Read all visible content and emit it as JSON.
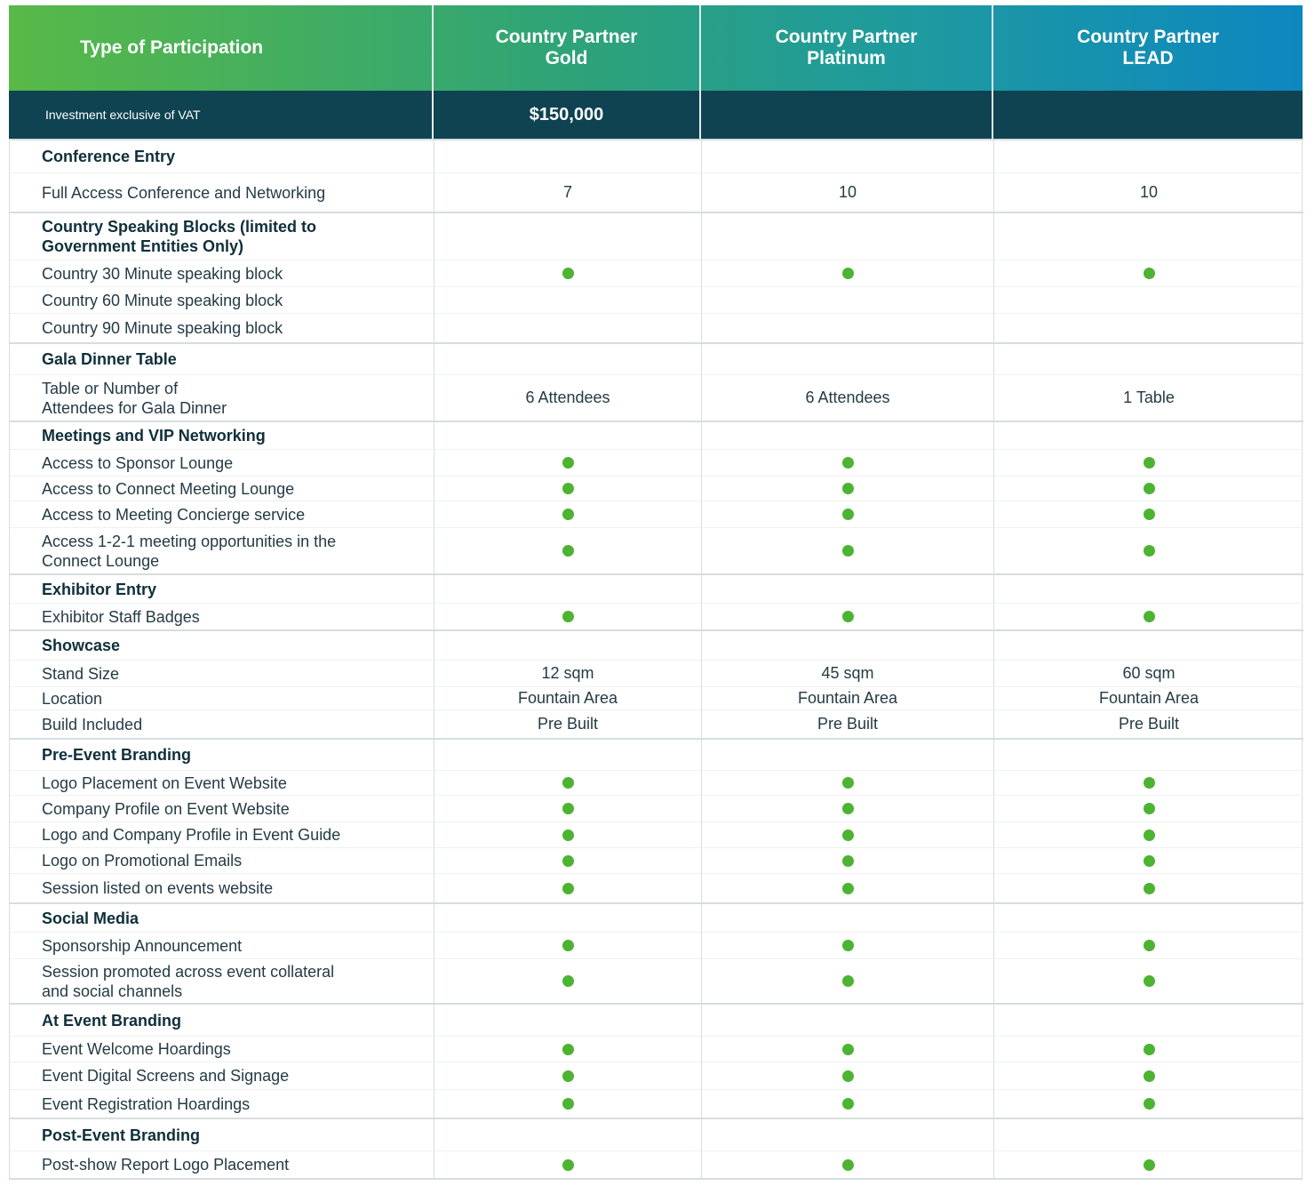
{
  "header": {
    "type_label": "Type of Participation",
    "columns": [
      "Country Partner\nGold",
      "Country Partner\nPlatinum",
      "Country Partner\nLEAD"
    ]
  },
  "investment": {
    "label": "Investment exclusive of VAT",
    "values": [
      "$150,000",
      "",
      ""
    ]
  },
  "colors": {
    "green_dot": "#4db332",
    "dark_band": "#0f4351",
    "header_gradient": [
      "#58b947",
      "#0d87c0"
    ]
  },
  "icon": "green-check-dot",
  "rows": [
    {
      "kind": "section",
      "label": "Conference Entry",
      "values": [
        "",
        "",
        ""
      ],
      "h": 38,
      "top": "thick"
    },
    {
      "kind": "item",
      "label": "Full Access Conference and Networking",
      "values": [
        "7",
        "10",
        "10"
      ],
      "h": 44,
      "top": "thin"
    },
    {
      "kind": "section",
      "label": "Country Speaking Blocks (limited to\nGovernment Entities Only)",
      "values": [
        "",
        "",
        ""
      ],
      "h": 54,
      "top": "thick"
    },
    {
      "kind": "item",
      "label": "Country 30 Minute speaking block",
      "values": [
        "dot",
        "dot",
        "dot"
      ],
      "h": 30,
      "top": "thin"
    },
    {
      "kind": "item",
      "label": "Country 60 Minute speaking block",
      "values": [
        "",
        "",
        ""
      ],
      "h": 30,
      "top": "thin"
    },
    {
      "kind": "item",
      "label": "Country 90 Minute speaking block",
      "values": [
        "",
        "",
        ""
      ],
      "h": 33,
      "top": "thin"
    },
    {
      "kind": "section",
      "label": "Gala Dinner Table",
      "values": [
        "",
        "",
        ""
      ],
      "h": 36,
      "top": "thick"
    },
    {
      "kind": "item",
      "label": "Table or Number of\nAttendees for Gala Dinner",
      "values": [
        "6 Attendees",
        "6 Attendees",
        "1 Table"
      ],
      "h": 52,
      "top": "thin"
    },
    {
      "kind": "section",
      "label": "Meetings and VIP Networking",
      "values": [
        "",
        "",
        ""
      ],
      "h": 32,
      "top": "thick"
    },
    {
      "kind": "item",
      "label": "Access to Sponsor Lounge",
      "values": [
        "dot",
        "dot",
        "dot"
      ],
      "h": 30,
      "top": "thin"
    },
    {
      "kind": "item",
      "label": "Access to Connect Meeting Lounge",
      "values": [
        "dot",
        "dot",
        "dot"
      ],
      "h": 28,
      "top": "thin"
    },
    {
      "kind": "item",
      "label": "Access to Meeting Concierge service",
      "values": [
        "dot",
        "dot",
        "dot"
      ],
      "h": 30,
      "top": "thin"
    },
    {
      "kind": "item",
      "label": "Access 1-2-1 meeting opportunities in the\nConnect Lounge",
      "values": [
        "dot",
        "dot",
        "dot"
      ],
      "h": 52,
      "top": "thin"
    },
    {
      "kind": "section",
      "label": "Exhibitor Entry",
      "values": [
        "",
        "",
        ""
      ],
      "h": 33,
      "top": "thick"
    },
    {
      "kind": "item",
      "label": "Exhibitor Staff Badges",
      "values": [
        "dot",
        "dot",
        "dot"
      ],
      "h": 30,
      "top": "thin"
    },
    {
      "kind": "section",
      "label": "Showcase",
      "values": [
        "",
        "",
        ""
      ],
      "h": 34,
      "top": "thick"
    },
    {
      "kind": "item",
      "label": "Stand Size",
      "values": [
        "12 sqm",
        "45 sqm",
        "60 sqm"
      ],
      "h": 30,
      "top": "thin"
    },
    {
      "kind": "item",
      "label": "Location",
      "values": [
        "Fountain Area",
        "Fountain Area",
        "Fountain Area"
      ],
      "h": 26,
      "top": "thin"
    },
    {
      "kind": "item",
      "label": "Build Included",
      "values": [
        "Pre Built",
        "Pre Built",
        "Pre Built"
      ],
      "h": 32,
      "top": "thin"
    },
    {
      "kind": "section",
      "label": "Pre-Event Branding",
      "values": [
        "",
        "",
        ""
      ],
      "h": 36,
      "top": "thick"
    },
    {
      "kind": "item",
      "label": "Logo Placement on Event Website",
      "values": [
        "dot",
        "dot",
        "dot"
      ],
      "h": 28,
      "top": "thin"
    },
    {
      "kind": "item",
      "label": "Company Profile on Event Website",
      "values": [
        "dot",
        "dot",
        "dot"
      ],
      "h": 30,
      "top": "thin"
    },
    {
      "kind": "item",
      "label": "Logo and Company Profile in Event Guide",
      "values": [
        "dot",
        "dot",
        "dot"
      ],
      "h": 29,
      "top": "thin"
    },
    {
      "kind": "item",
      "label": "Logo on Promotional Emails",
      "values": [
        "dot",
        "dot",
        "dot"
      ],
      "h": 29,
      "top": "thin"
    },
    {
      "kind": "item",
      "label": "Session listed on events website",
      "values": [
        "dot",
        "dot",
        "dot"
      ],
      "h": 33,
      "top": "thin"
    },
    {
      "kind": "section",
      "label": "Social Media",
      "values": [
        "",
        "",
        ""
      ],
      "h": 33,
      "top": "thick"
    },
    {
      "kind": "item",
      "label": "Sponsorship Announcement",
      "values": [
        "dot",
        "dot",
        "dot"
      ],
      "h": 30,
      "top": "thin"
    },
    {
      "kind": "item",
      "label": "Session promoted across event collateral\nand social channels",
      "values": [
        "dot",
        "dot",
        "dot"
      ],
      "h": 50,
      "top": "thin"
    },
    {
      "kind": "section",
      "label": "At Event Branding",
      "values": [
        "",
        "",
        ""
      ],
      "h": 37,
      "top": "thick"
    },
    {
      "kind": "item",
      "label": "Event Welcome Hoardings",
      "values": [
        "dot",
        "dot",
        "dot"
      ],
      "h": 29,
      "top": "thin"
    },
    {
      "kind": "item",
      "label": "Event Digital Screens and Signage",
      "values": [
        "dot",
        "dot",
        "dot"
      ],
      "h": 31,
      "top": "thin"
    },
    {
      "kind": "item",
      "label": "Event Registration Hoardings",
      "values": [
        "dot",
        "dot",
        "dot"
      ],
      "h": 32,
      "top": "thin"
    },
    {
      "kind": "section",
      "label": "Post-Event Branding",
      "values": [
        "",
        "",
        ""
      ],
      "h": 37,
      "top": "thick"
    },
    {
      "kind": "item",
      "label": "Post-show Report Logo Placement",
      "values": [
        "dot",
        "dot",
        "dot"
      ],
      "h": 31,
      "top": "thin"
    }
  ]
}
